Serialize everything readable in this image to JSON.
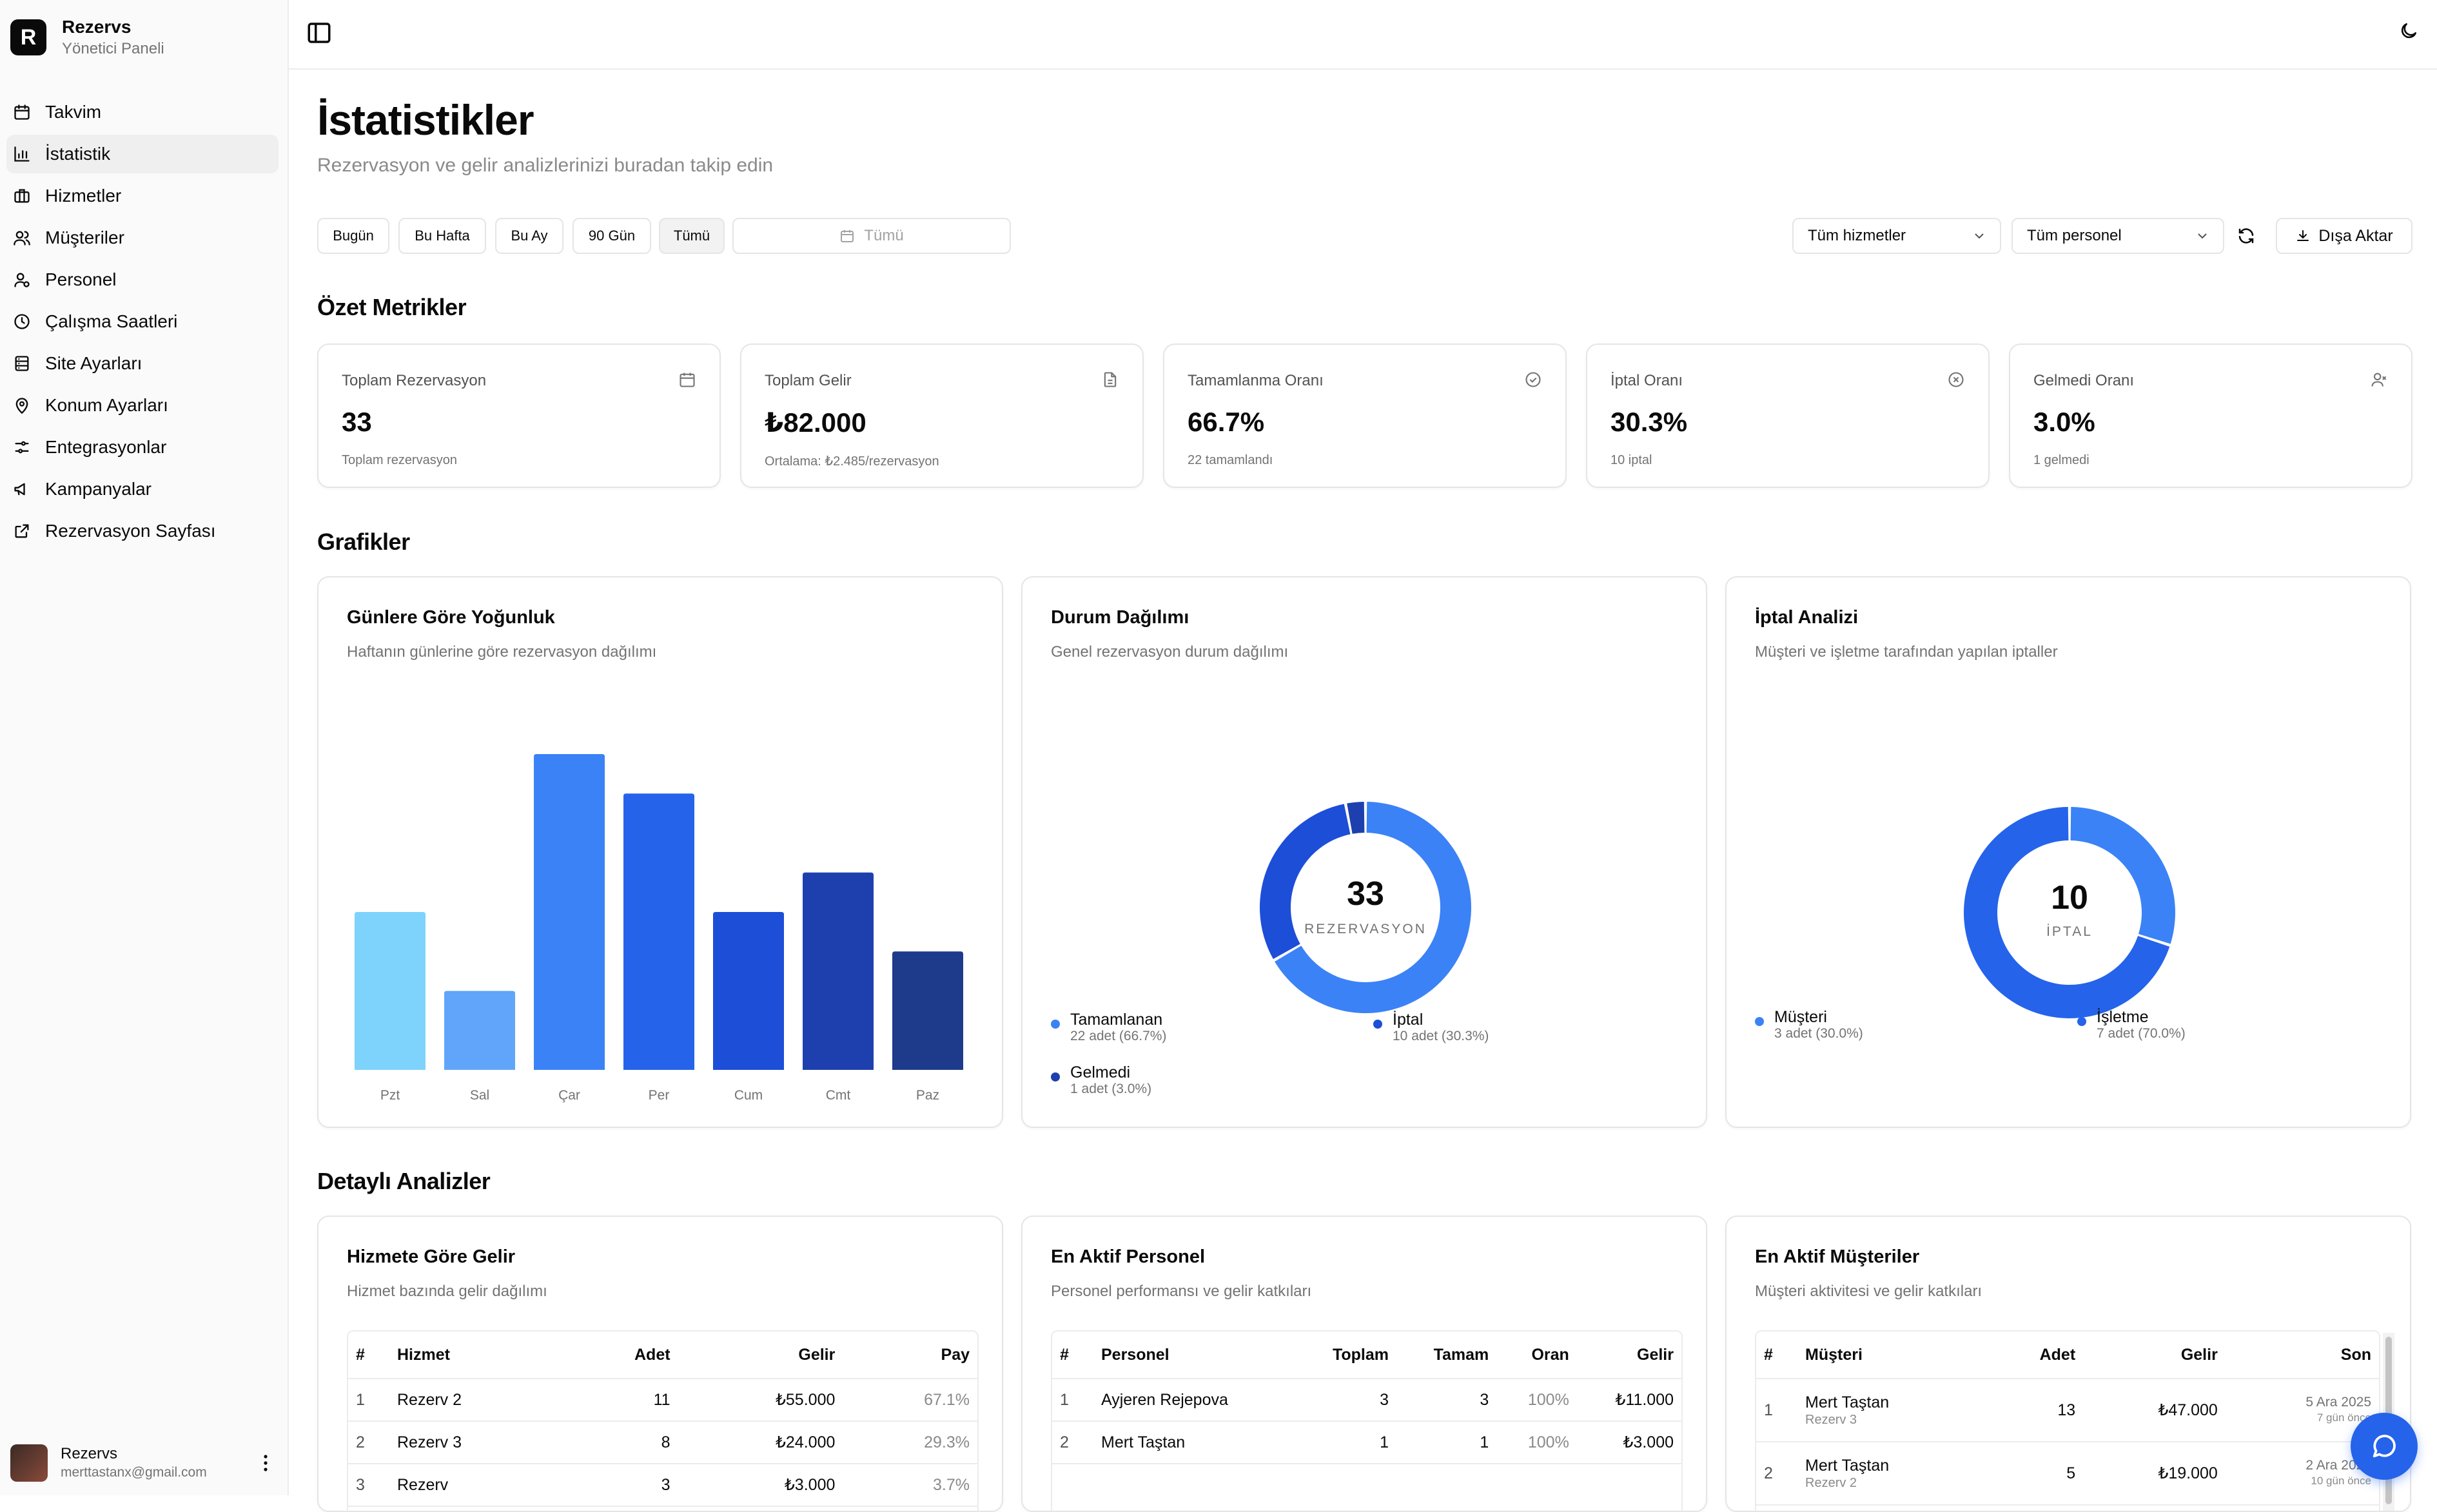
{
  "sidebar": {
    "brand": {
      "logo_letter": "R",
      "name": "Rezervs",
      "subtitle": "Yönetici Paneli"
    },
    "items": [
      {
        "label": "Takvim",
        "icon": "calendar-icon"
      },
      {
        "label": "İstatistik",
        "icon": "bar-chart-icon",
        "active": true
      },
      {
        "label": "Hizmetler",
        "icon": "briefcase-icon"
      },
      {
        "label": "Müşteriler",
        "icon": "users-icon"
      },
      {
        "label": "Personel",
        "icon": "user-cog-icon"
      },
      {
        "label": "Çalışma Saatleri",
        "icon": "clock-icon"
      },
      {
        "label": "Site Ayarları",
        "icon": "database-icon"
      },
      {
        "label": "Konum Ayarları",
        "icon": "map-pin-icon"
      },
      {
        "label": "Entegrasyonlar",
        "icon": "sliders-icon"
      },
      {
        "label": "Kampanyalar",
        "icon": "megaphone-icon"
      },
      {
        "label": "Rezervasyon Sayfası",
        "icon": "external-link-icon"
      }
    ],
    "user": {
      "name": "Rezervs",
      "email": "merttastanx@gmail.com"
    }
  },
  "header": {
    "title": "İstatistikler",
    "subtitle": "Rezervasyon ve gelir analizlerinizi buradan takip edin"
  },
  "filters": {
    "ranges": [
      "Bugün",
      "Bu Hafta",
      "Bu Ay",
      "90 Gün",
      "Tümü"
    ],
    "selected_range": "Tümü",
    "date_picker": "Tümü",
    "service_select": "Tüm hizmetler",
    "staff_select": "Tüm personel",
    "export_label": "Dışa Aktar"
  },
  "sections": {
    "summary": "Özet Metrikler",
    "charts": "Grafikler",
    "details": "Detaylı Analizler"
  },
  "metrics": [
    {
      "title": "Toplam Rezervasyon",
      "value": "33",
      "sub": "Toplam rezervasyon",
      "icon": "calendar-icon"
    },
    {
      "title": "Toplam Gelir",
      "value": "₺82.000",
      "sub": "Ortalama: ₺2.485/rezervasyon",
      "icon": "file-icon"
    },
    {
      "title": "Tamamlanma Oranı",
      "value": "66.7%",
      "sub": "22 tamamlandı",
      "icon": "check-circle-icon"
    },
    {
      "title": "İptal Oranı",
      "value": "30.3%",
      "sub": "10 iptal",
      "icon": "x-circle-icon"
    },
    {
      "title": "Gelmedi Oranı",
      "value": "3.0%",
      "sub": "1 gelmedi",
      "icon": "user-x-icon"
    }
  ],
  "charts": {
    "density": {
      "title": "Günlere Göre Yoğunluk",
      "subtitle": "Haftanın günlerine göre rezervasyon dağılımı"
    },
    "status": {
      "title": "Durum Dağılımı",
      "subtitle": "Genel rezervasyon durum dağılımı",
      "center_value": "33",
      "center_label": "REZERVASYON",
      "legend": [
        {
          "name": "Tamamlanan",
          "value": "22 adet (66.7%)"
        },
        {
          "name": "İptal",
          "value": "10 adet (30.3%)"
        },
        {
          "name": "Gelmedi",
          "value": "1 adet (3.0%)"
        }
      ]
    },
    "cancel": {
      "title": "İptal Analizi",
      "subtitle": "Müşteri ve işletme tarafından yapılan iptaller",
      "center_value": "10",
      "center_label": "İPTAL",
      "legend": [
        {
          "name": "Müşteri",
          "value": "3 adet (30.0%)"
        },
        {
          "name": "İşletme",
          "value": "7 adet (70.0%)"
        }
      ]
    }
  },
  "chart_data": [
    {
      "type": "bar",
      "categories": [
        "Pzt",
        "Sal",
        "Çar",
        "Per",
        "Cum",
        "Cmt",
        "Paz"
      ],
      "values": [
        4,
        2,
        8,
        7,
        4,
        5,
        3
      ],
      "colors": [
        "#7dd3fc",
        "#60a5fa",
        "#3b82f6",
        "#2563eb",
        "#1d4ed8",
        "#1e40af",
        "#1e3a8a"
      ],
      "ylim": [
        0,
        8
      ]
    },
    {
      "type": "pie",
      "categories": [
        "Tamamlanan",
        "İptal",
        "Gelmedi"
      ],
      "values": [
        22,
        10,
        1
      ],
      "colors": [
        "#3b82f6",
        "#1d4ed8",
        "#1e40af"
      ]
    },
    {
      "type": "pie",
      "categories": [
        "Müşteri",
        "İşletme"
      ],
      "values": [
        3,
        7
      ],
      "colors": [
        "#3b82f6",
        "#2563eb"
      ]
    }
  ],
  "tables": {
    "service_revenue": {
      "title": "Hizmete Göre Gelir",
      "subtitle": "Hizmet bazında gelir dağılımı",
      "headers": [
        "#",
        "Hizmet",
        "Adet",
        "Gelir",
        "Pay"
      ],
      "rows": [
        [
          "1",
          "Rezerv 2",
          "11",
          "₺55.000",
          "67.1%"
        ],
        [
          "2",
          "Rezerv 3",
          "8",
          "₺24.000",
          "29.3%"
        ],
        [
          "3",
          "Rezerv",
          "3",
          "₺3.000",
          "3.7%"
        ]
      ]
    },
    "active_staff": {
      "title": "En Aktif Personel",
      "subtitle": "Personel performansı ve gelir katkıları",
      "headers": [
        "#",
        "Personel",
        "Toplam",
        "Tamam",
        "Oran",
        "Gelir"
      ],
      "rows": [
        [
          "1",
          "Ayjeren Rejepova",
          "3",
          "3",
          "100%",
          "₺11.000"
        ],
        [
          "2",
          "Mert Taştan",
          "1",
          "1",
          "100%",
          "₺3.000"
        ]
      ]
    },
    "active_customers": {
      "title": "En Aktif Müşteriler",
      "subtitle": "Müşteri aktivitesi ve gelir katkıları",
      "headers": [
        "#",
        "Müşteri",
        "Adet",
        "Gelir",
        "Son"
      ],
      "rows": [
        {
          "rank": "1",
          "name": "Mert Taştan",
          "service": "Rezerv 3",
          "count": "13",
          "revenue": "₺47.000",
          "date": "5 Ara 2025",
          "ago": "7 gün önce"
        },
        {
          "rank": "2",
          "name": "Mert Taştan",
          "service": "Rezerv 2",
          "count": "5",
          "revenue": "₺19.000",
          "date": "2 Ara 2025",
          "ago": "10 gün önce"
        }
      ]
    }
  },
  "colors": {
    "accent": "#2563eb",
    "border": "#e5e5e5",
    "muted_text": "#737373"
  }
}
